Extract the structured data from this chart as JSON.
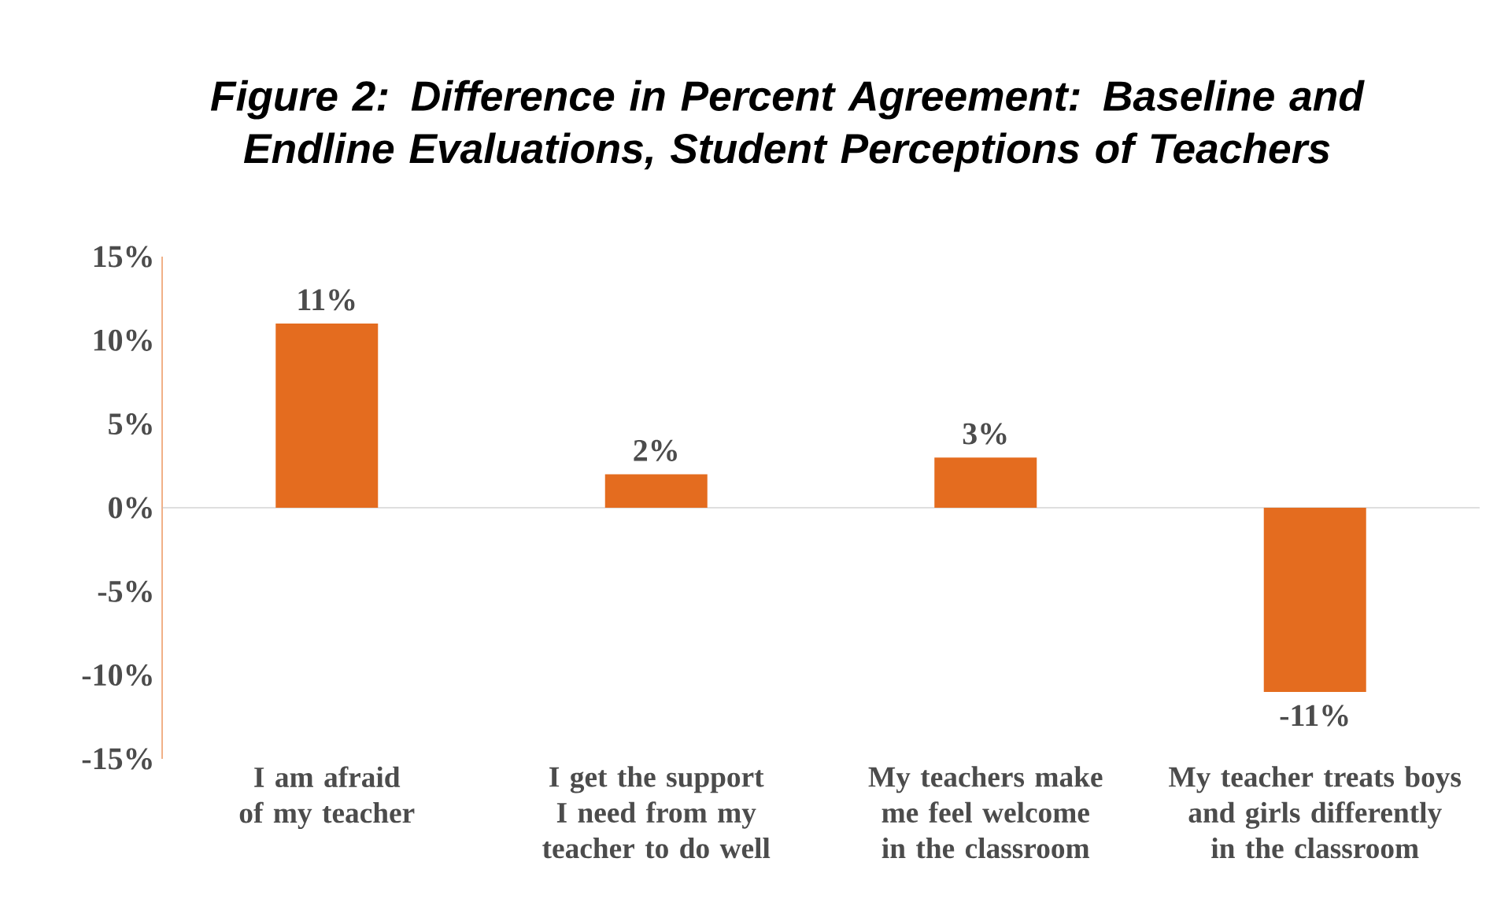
{
  "chart_data": {
    "type": "bar",
    "title": "Figure 2: Difference in Percent Agreement: Baseline and Endline Evaluations, Student Perceptions of Teachers",
    "categories": [
      "I am afraid of my teacher",
      "I get the support I need from my teacher to do well",
      "My teachers make me feel welcome in the classroom",
      "My teacher treats boys and girls differently in the classroom"
    ],
    "values": [
      11,
      2,
      3,
      -11
    ],
    "value_labels": [
      "11%",
      "2%",
      "3%",
      "-11%"
    ],
    "color": "#e46c1f",
    "ylim": [
      -15,
      15
    ],
    "yticks": [
      {
        "value": -15,
        "label": "-15%"
      },
      {
        "value": -10,
        "label": "-10%"
      },
      {
        "value": -5,
        "label": "-5%"
      },
      {
        "value": 0,
        "label": "0%"
      },
      {
        "value": 5,
        "label": "5%"
      },
      {
        "value": 10,
        "label": "10%"
      },
      {
        "value": 15,
        "label": "15%"
      }
    ]
  }
}
